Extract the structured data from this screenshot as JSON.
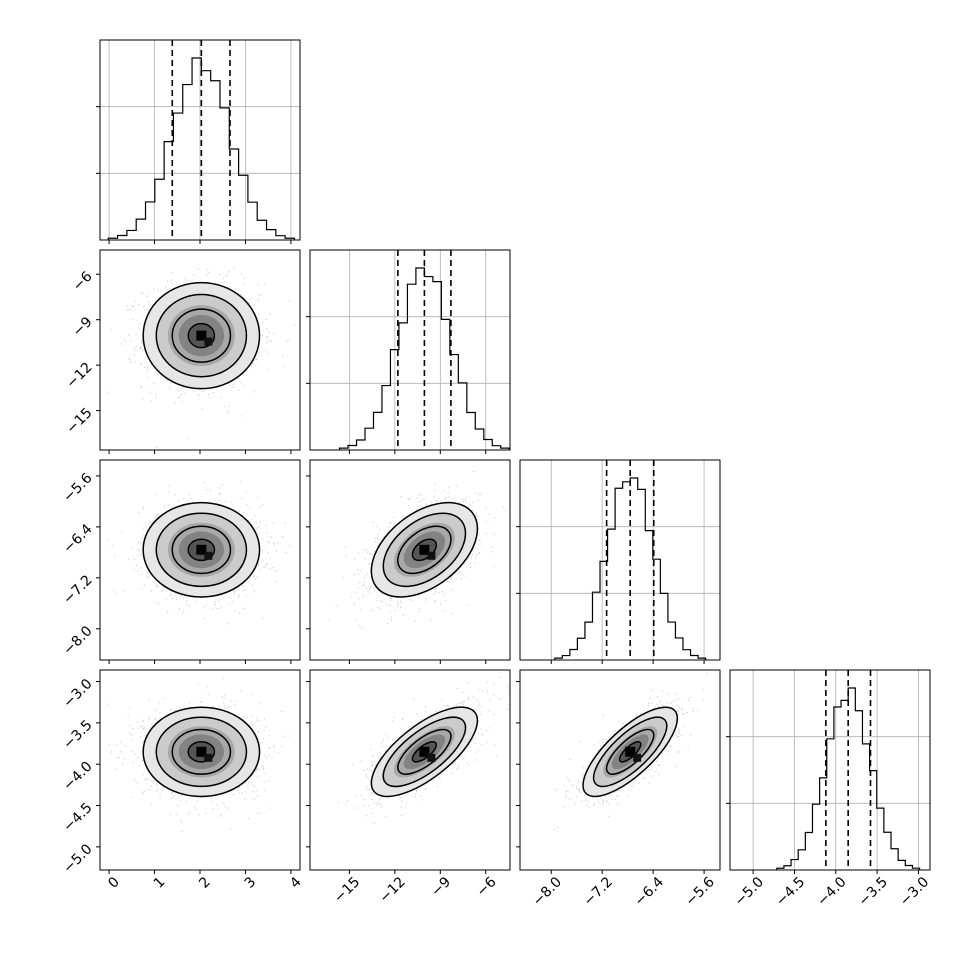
{
  "chart_data": {
    "type": "scatter",
    "title": "",
    "layout": "corner-plot",
    "parameters": [
      {
        "name": "",
        "range": [
          -0.2,
          4.2
        ],
        "ticks": [
          "0",
          "1",
          "2",
          "3",
          "4"
        ],
        "tick_values": [
          0,
          1,
          2,
          3,
          4
        ],
        "mean": 2.03,
        "std": 0.64,
        "quantiles": [
          1.39,
          2.03,
          2.66
        ]
      },
      {
        "name": "",
        "range": [
          -17.6,
          -4.4
        ],
        "ticks": [
          "−15",
          "−12",
          "−9",
          "−6"
        ],
        "tick_values": [
          -15,
          -12,
          -9,
          -6
        ],
        "mean": -10.05,
        "std": 1.75,
        "quantiles": [
          -11.8,
          -10.05,
          -8.3
        ]
      },
      {
        "name": "",
        "range": [
          -8.49,
          -5.35
        ],
        "ticks": [
          "−8.0",
          "−7.2",
          "−6.4",
          "−5.6"
        ],
        "tick_values": [
          -8.0,
          -7.2,
          -6.4,
          -5.6
        ],
        "mean": -6.76,
        "std": 0.37,
        "quantiles": [
          -7.13,
          -6.76,
          -6.39
        ]
      },
      {
        "name": "",
        "range": [
          -5.28,
          -2.86
        ],
        "ticks": [
          "−5.0",
          "−4.5",
          "−4.0",
          "−3.5",
          "−3.0"
        ],
        "tick_values": [
          -5.0,
          -4.5,
          -4.0,
          -3.5,
          -3.0
        ],
        "mean": -3.85,
        "std": 0.27,
        "quantiles": [
          -4.12,
          -3.85,
          -3.58
        ]
      }
    ],
    "correlations": [
      {
        "pair": [
          0,
          1
        ],
        "rho": 0.0
      },
      {
        "pair": [
          0,
          2
        ],
        "rho": 0.0
      },
      {
        "pair": [
          0,
          3
        ],
        "rho": 0.0
      },
      {
        "pair": [
          1,
          2
        ],
        "rho": 0.45
      },
      {
        "pair": [
          1,
          3
        ],
        "rho": 0.7
      },
      {
        "pair": [
          2,
          3
        ],
        "rho": 0.75
      }
    ],
    "histogram_bins": 20,
    "contour_levels": 4,
    "grid": true,
    "colors": {
      "lines": "#000000",
      "points": "#9a9a9a",
      "grid": "#b0b0b0"
    }
  }
}
